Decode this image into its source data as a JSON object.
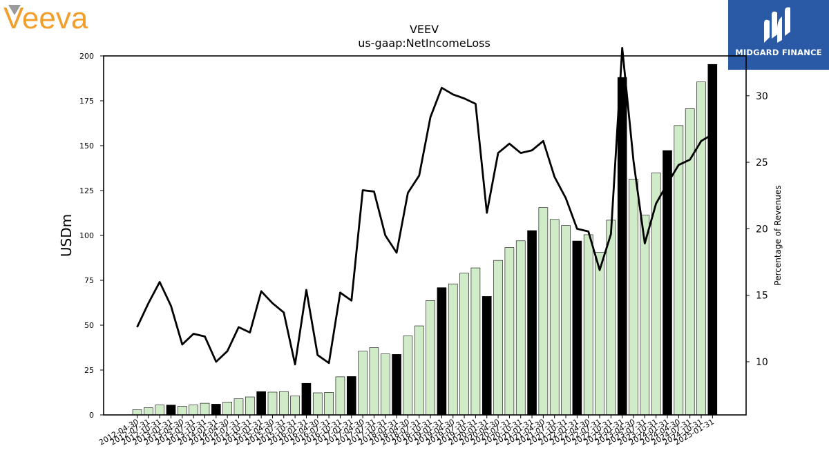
{
  "header": {
    "left_logo_text": "Veeva",
    "right_logo_text": "MIDGARD FINANCE"
  },
  "chart_data": {
    "type": "bar",
    "title": "VEEV",
    "subtitle": "us-gaap:NetIncomeLoss",
    "ylabel": "USDm",
    "y2label": "Percentage of Revenues",
    "ylim": [
      0,
      200
    ],
    "y2lim": [
      6,
      33
    ],
    "yticks": [
      "0",
      "25",
      "50",
      "75",
      "100",
      "125",
      "150",
      "175",
      "200"
    ],
    "y2ticks": [
      "10",
      "15",
      "20",
      "25",
      "30"
    ],
    "categories": [
      "2012-04-30",
      "2012-07-31",
      "2012-10-31",
      "2013-01-31",
      "2013-04-30",
      "2013-07-31",
      "2013-10-31",
      "2014-01-31",
      "2014-04-30",
      "2014-07-31",
      "2014-10-31",
      "2015-01-31",
      "2015-04-30",
      "2015-07-31",
      "2015-10-31",
      "2016-01-31",
      "2016-04-30",
      "2016-07-31",
      "2016-10-31",
      "2017-01-31",
      "2017-04-30",
      "2017-07-31",
      "2017-10-31",
      "2018-01-31",
      "2018-04-30",
      "2018-07-31",
      "2018-10-31",
      "2019-01-31",
      "2019-04-30",
      "2019-07-31",
      "2019-10-31",
      "2020-01-31",
      "2020-04-30",
      "2020-07-31",
      "2020-10-31",
      "2021-01-31",
      "2021-04-30",
      "2021-07-31",
      "2021-10-31",
      "2022-01-31",
      "2022-04-30",
      "2022-07-31",
      "2022-10-31",
      "2023-01-31",
      "2023-04-30",
      "2023-07-31",
      "2023-10-31",
      "2024-01-31",
      "2024-04-30",
      "2024-07-31",
      "2024-10-31",
      "2025-01-31"
    ],
    "series": [
      {
        "values": [
          2.9,
          4.0,
          5.5,
          5.5,
          4.8,
          5.5,
          6.5,
          6.0,
          7.2,
          9.0,
          10.0,
          13.0,
          12.7,
          13.0,
          10.5,
          17.6,
          12.3,
          12.5,
          21.2,
          21.4,
          35.5,
          37.5,
          34.0,
          33.7,
          44.0,
          49.6,
          63.7,
          70.9,
          73.0,
          79.0,
          81.9,
          66.0,
          86.1,
          93.2,
          97.0,
          102.7,
          115.5,
          108.9,
          105.5,
          96.9,
          100.4,
          90.5,
          108.5,
          188.0,
          131.4,
          111.3,
          134.8,
          147.3,
          161.2,
          170.6,
          185.5,
          195.3
        ],
        "annual": [
          false,
          false,
          false,
          true,
          false,
          false,
          false,
          true,
          false,
          false,
          false,
          true,
          false,
          false,
          false,
          true,
          false,
          false,
          false,
          true,
          false,
          false,
          false,
          true,
          false,
          false,
          false,
          true,
          false,
          false,
          false,
          true,
          false,
          false,
          false,
          true,
          false,
          false,
          false,
          true,
          false,
          false,
          false,
          true,
          false,
          false,
          false,
          true,
          false,
          false,
          false,
          true
        ]
      },
      {
        "axis": "right",
        "values": [
          12.6,
          14.4,
          16.0,
          14.2,
          11.3,
          12.1,
          11.9,
          10.0,
          10.8,
          12.6,
          12.2,
          15.3,
          14.4,
          13.7,
          9.8,
          15.4,
          10.5,
          9.9,
          15.2,
          14.6,
          22.9,
          22.8,
          19.5,
          18.2,
          22.7,
          24.0,
          28.4,
          30.6,
          30.1,
          29.8,
          29.4,
          21.2,
          25.7,
          26.4,
          25.7,
          25.9,
          26.6,
          23.9,
          22.3,
          20.0,
          19.8,
          16.9,
          19.6,
          33.6,
          25.1,
          18.9,
          21.9,
          23.4,
          24.8,
          25.2,
          26.6,
          27.1
        ]
      }
    ],
    "colors": {
      "bar_quarter": "#d0ebc8",
      "bar_annual": "#000000",
      "line": "#000000",
      "logo_orange": "#f29e2b",
      "logo_grey": "#9a9a9a",
      "brand_blue": "#2a5aa6"
    }
  }
}
